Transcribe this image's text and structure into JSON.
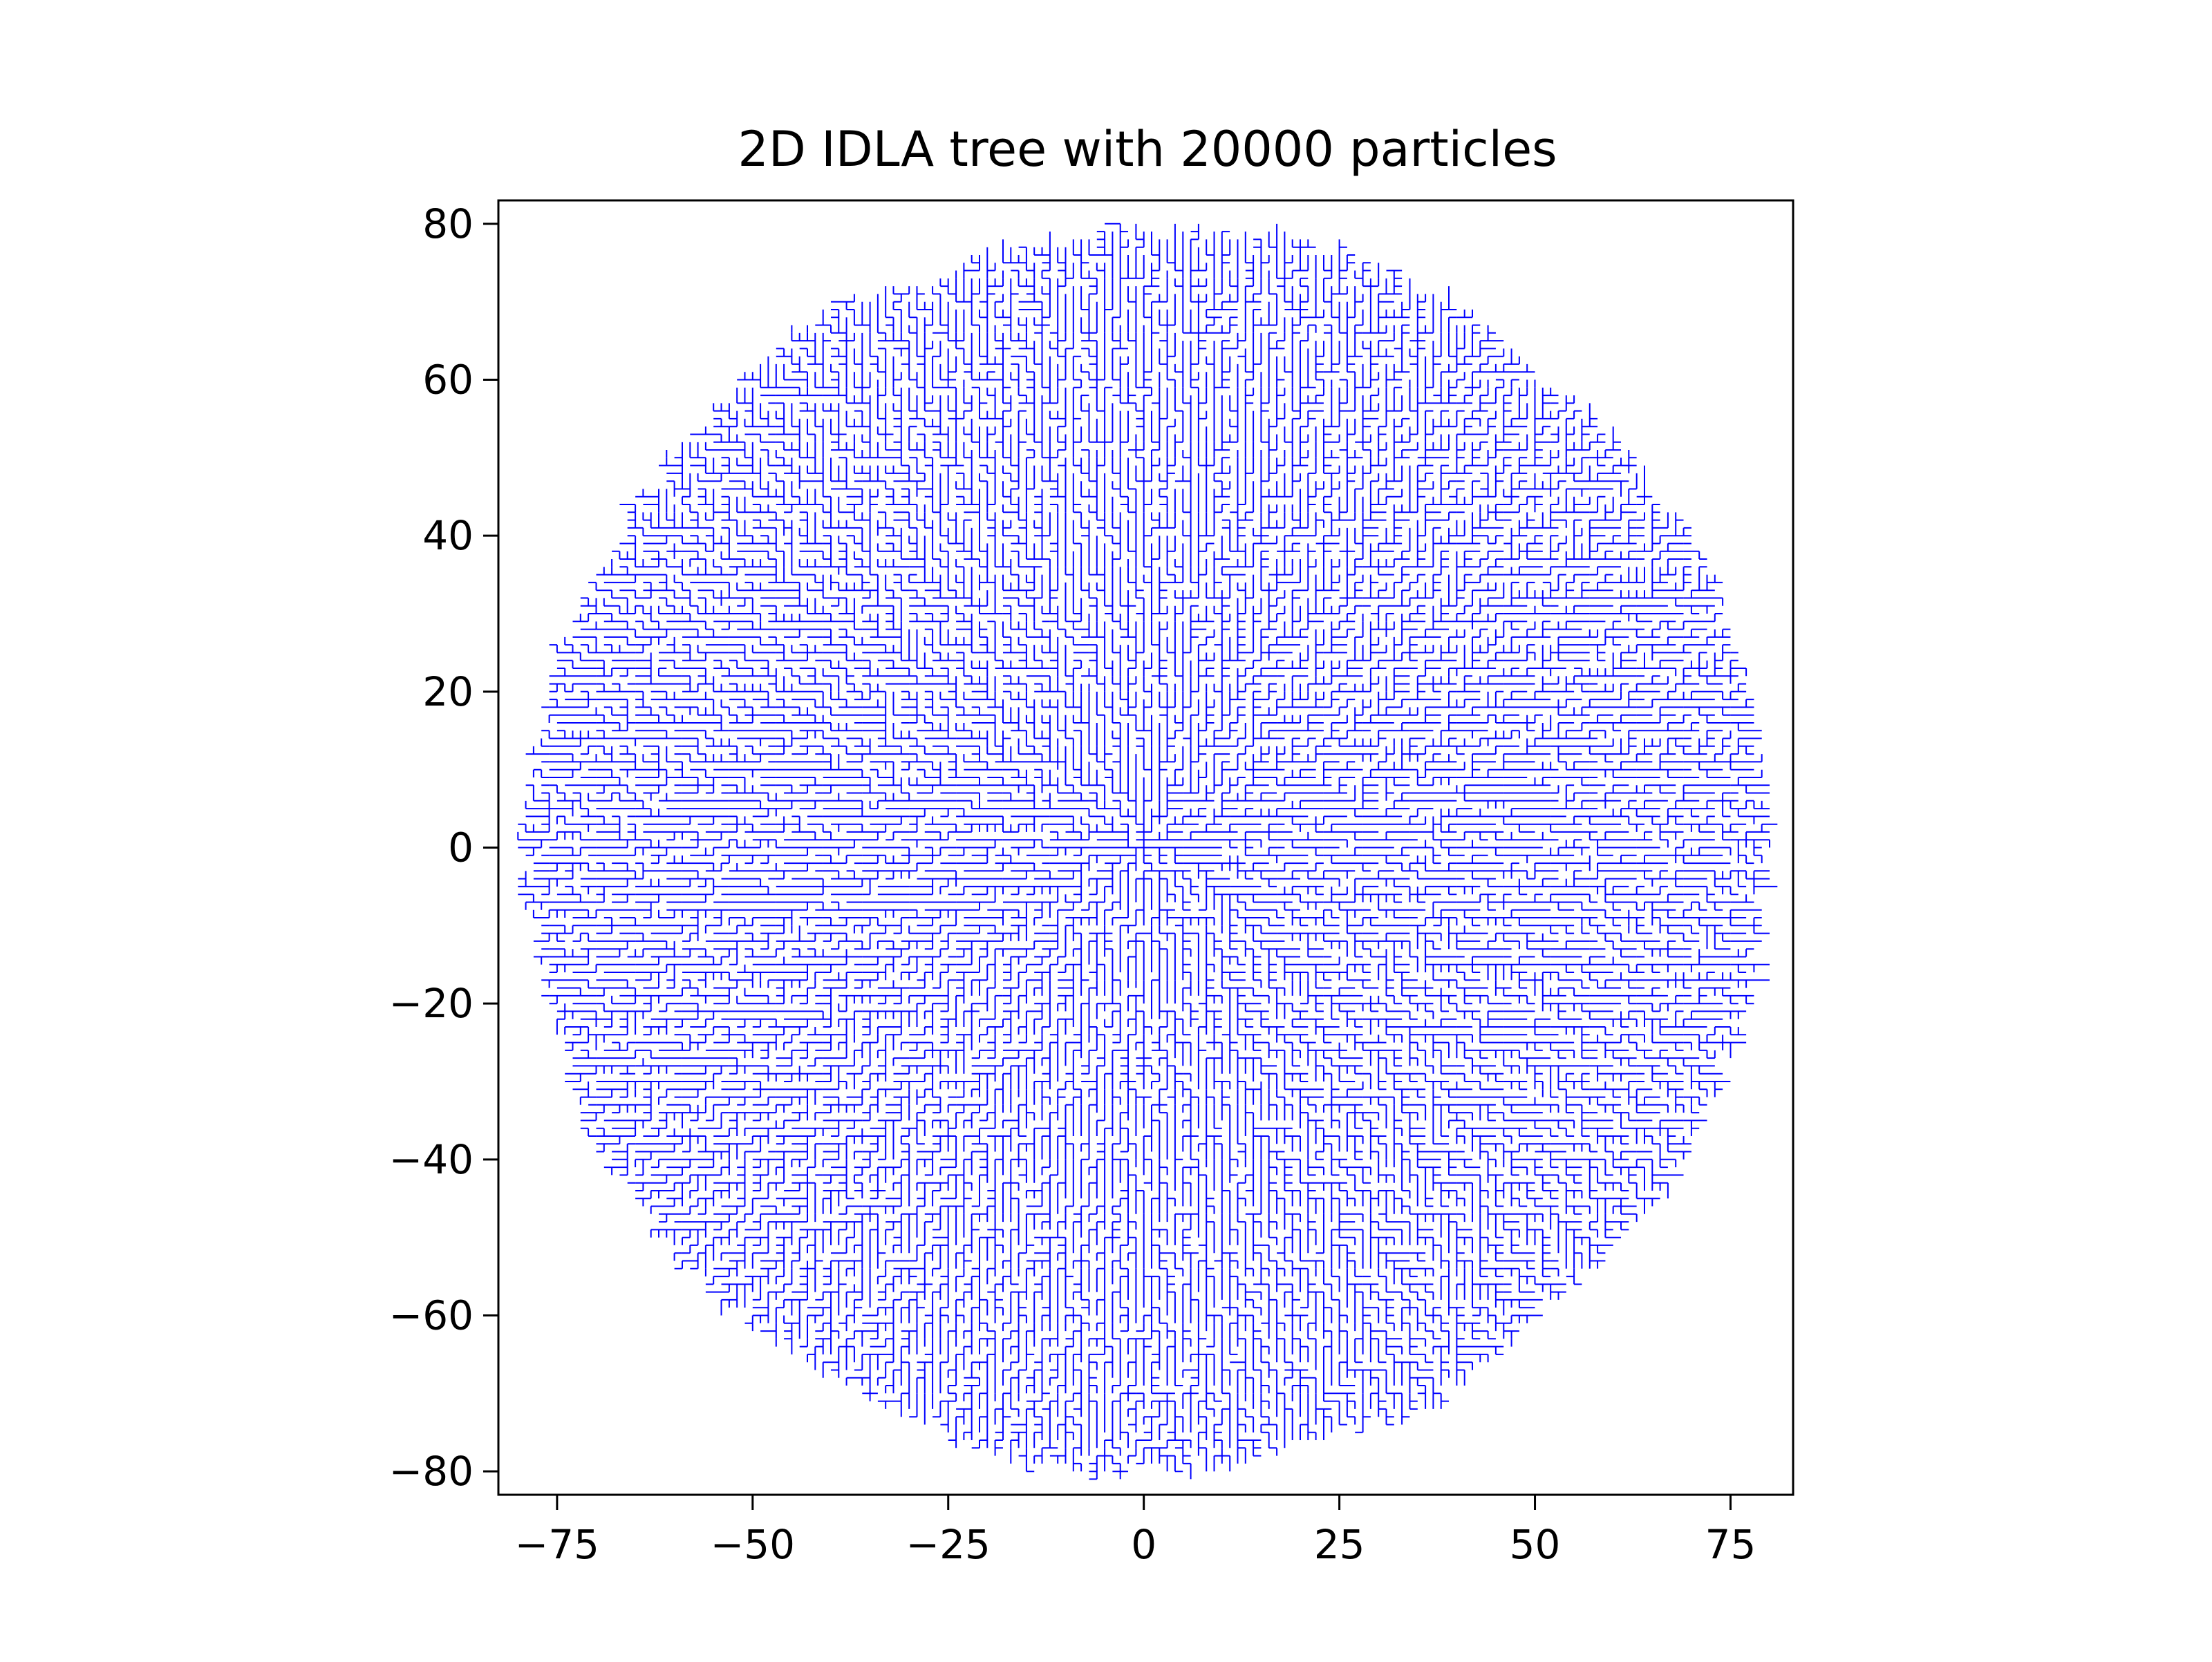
{
  "chart_data": {
    "type": "line",
    "title": "2D IDLA tree with 20000 particles",
    "xlabel": "",
    "ylabel": "",
    "xlim": [
      -82.5,
      83
    ],
    "ylim": [
      -83,
      83
    ],
    "x_ticks": [
      -75,
      -50,
      -25,
      0,
      25,
      50,
      75
    ],
    "y_ticks": [
      -80,
      -60,
      -40,
      -20,
      0,
      20,
      40,
      60,
      80
    ],
    "x_tick_labels": [
      "−75",
      "−50",
      "−25",
      "0",
      "25",
      "50",
      "75"
    ],
    "y_tick_labels": [
      "−80",
      "−60",
      "−40",
      "−20",
      "0",
      "20",
      "40",
      "60",
      "80"
    ],
    "grid": false,
    "legend": "none",
    "series": [
      {
        "color": "#0000ff",
        "particles": 20000,
        "approx_radius": 80
      }
    ]
  }
}
